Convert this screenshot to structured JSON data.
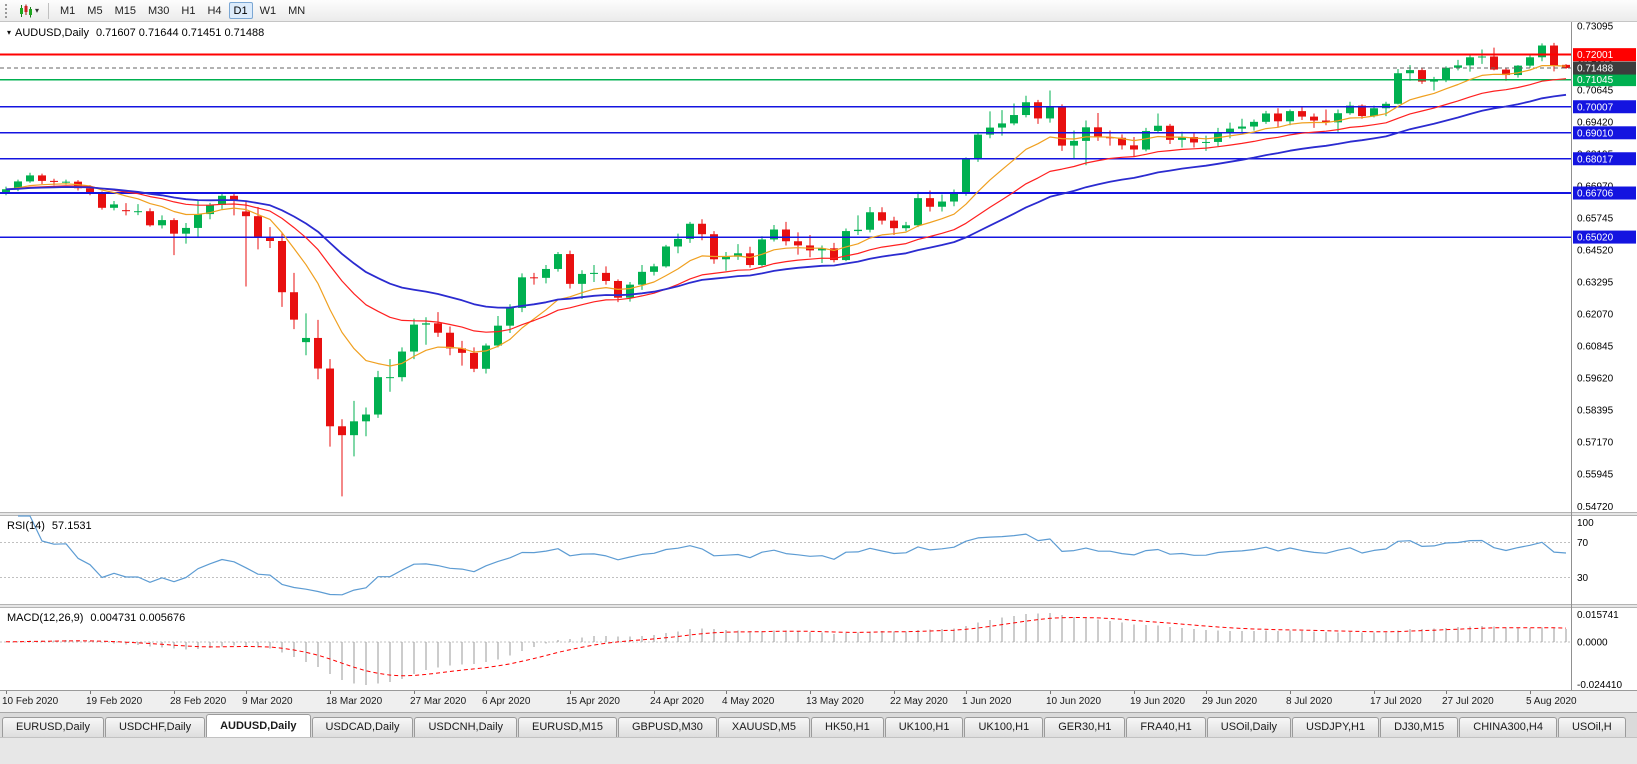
{
  "toolbar": {
    "timeframes": [
      "M1",
      "M5",
      "M15",
      "M30",
      "H1",
      "H4",
      "D1",
      "W1",
      "MN"
    ],
    "active_timeframe": "D1"
  },
  "main_chart": {
    "title": "AUDUSD,Daily",
    "ohlc": "0.71607 0.71644 0.71451 0.71488"
  },
  "rsi_panel": {
    "label": "RSI(14)",
    "value": "57.1531",
    "ticks": [
      "100",
      "70",
      "30"
    ]
  },
  "macd_panel": {
    "label": "MACD(12,26,9)",
    "values": "0.004731 0.005676",
    "ticks": [
      "0.015741",
      "0.0000",
      "-0.024410"
    ]
  },
  "chart_data": {
    "type": "candlestick",
    "symbol": "AUDUSD",
    "period": "Daily",
    "candle_up_color": "#00b050",
    "candle_down_color": "#e81010",
    "y_axis": {
      "min": 0.545,
      "max": 0.7325,
      "tick_values": [
        0.73095,
        0.7187,
        0.70645,
        0.6942,
        0.68195,
        0.6697,
        0.65745,
        0.6452,
        0.63295,
        0.6207,
        0.60845,
        0.5962,
        0.58395,
        0.5717,
        0.55945,
        0.5472
      ]
    },
    "x_labels": [
      {
        "t": "10 Feb 2020",
        "i": 0
      },
      {
        "t": "19 Feb 2020",
        "i": 7
      },
      {
        "t": "28 Feb 2020",
        "i": 14
      },
      {
        "t": "9 Mar 2020",
        "i": 20
      },
      {
        "t": "18 Mar 2020",
        "i": 27
      },
      {
        "t": "27 Mar 2020",
        "i": 34
      },
      {
        "t": "6 Apr 2020",
        "i": 40
      },
      {
        "t": "15 Apr 2020",
        "i": 47
      },
      {
        "t": "24 Apr 2020",
        "i": 54
      },
      {
        "t": "4 May 2020",
        "i": 60
      },
      {
        "t": "13 May 2020",
        "i": 67
      },
      {
        "t": "22 May 2020",
        "i": 74
      },
      {
        "t": "1 Jun 2020",
        "i": 80
      },
      {
        "t": "10 Jun 2020",
        "i": 87
      },
      {
        "t": "19 Jun 2020",
        "i": 94
      },
      {
        "t": "29 Jun 2020",
        "i": 100
      },
      {
        "t": "8 Jul 2020",
        "i": 107
      },
      {
        "t": "17 Jul 2020",
        "i": 114
      },
      {
        "t": "27 Jul 2020",
        "i": 120
      },
      {
        "t": "5 Aug 2020",
        "i": 127
      }
    ],
    "horizontal_lines": [
      {
        "value": 0.72001,
        "label": "0.72001",
        "color": "#ff0000",
        "width": 2
      },
      {
        "value": 0.71045,
        "label": "0.71045",
        "color": "#00b050",
        "width": 1.6
      },
      {
        "value": 0.70007,
        "label": "0.70007",
        "color": "#1414e0",
        "width": 1.6
      },
      {
        "value": 0.6901,
        "label": "0.69010",
        "color": "#1414e0",
        "width": 1.6
      },
      {
        "value": 0.68017,
        "label": "0.68017",
        "color": "#1414e0",
        "width": 1.6
      },
      {
        "value": 0.66706,
        "label": "0.66706",
        "color": "#1414e0",
        "width": 1.6
      },
      {
        "value": 0.6502,
        "label": "0.65020",
        "color": "#1414e0",
        "width": 1.6
      }
    ],
    "current_price": {
      "value": 0.71488,
      "label": "0.71488",
      "color": "#3d3d3d"
    },
    "moving_averages": [
      {
        "period": 10,
        "color": "#f0a020",
        "width": 1.2
      },
      {
        "period": 21,
        "color": "#ff2020",
        "width": 1.2
      },
      {
        "period": 34,
        "color": "#2b2bd0",
        "width": 1.8
      }
    ],
    "rsi": {
      "period": 14,
      "levels": [
        70,
        30
      ],
      "color": "#5d9cd3"
    },
    "macd": {
      "fast": 12,
      "slow": 26,
      "signal": 9,
      "histogram_color": "#9a9a9a",
      "signal_color": "#ff0000"
    },
    "candles": [
      [
        0.667,
        0.6695,
        0.6662,
        0.6685
      ],
      [
        0.6685,
        0.6722,
        0.6678,
        0.6715
      ],
      [
        0.6715,
        0.6748,
        0.671,
        0.6738
      ],
      [
        0.6738,
        0.6745,
        0.6705,
        0.6717
      ],
      [
        0.6717,
        0.6725,
        0.67,
        0.6713
      ],
      [
        0.6713,
        0.6722,
        0.6702,
        0.6714
      ],
      [
        0.6714,
        0.672,
        0.668,
        0.6689
      ],
      [
        0.6689,
        0.6701,
        0.6662,
        0.6672
      ],
      [
        0.6672,
        0.6677,
        0.6607,
        0.6614
      ],
      [
        0.6614,
        0.664,
        0.6604,
        0.6627
      ],
      [
        0.6605,
        0.6632,
        0.6585,
        0.6601
      ],
      [
        0.6601,
        0.6628,
        0.6586,
        0.6601
      ],
      [
        0.6601,
        0.6612,
        0.6542,
        0.6547
      ],
      [
        0.6547,
        0.6585,
        0.6535,
        0.6567
      ],
      [
        0.6567,
        0.6574,
        0.6433,
        0.6515
      ],
      [
        0.6515,
        0.6556,
        0.6477,
        0.6537
      ],
      [
        0.6537,
        0.6646,
        0.6504,
        0.659
      ],
      [
        0.659,
        0.6633,
        0.657,
        0.6625
      ],
      [
        0.6625,
        0.667,
        0.661,
        0.666
      ],
      [
        0.666,
        0.6668,
        0.6585,
        0.664
      ],
      [
        0.66,
        0.664,
        0.6313,
        0.6582
      ],
      [
        0.6582,
        0.6617,
        0.6455,
        0.65
      ],
      [
        0.65,
        0.654,
        0.646,
        0.6487
      ],
      [
        0.6487,
        0.652,
        0.6235,
        0.6291
      ],
      [
        0.6291,
        0.6365,
        0.615,
        0.6186
      ],
      [
        0.61,
        0.621,
        0.605,
        0.6116
      ],
      [
        0.6116,
        0.6185,
        0.5958,
        0.5999
      ],
      [
        0.5999,
        0.6035,
        0.57,
        0.5778
      ],
      [
        0.5778,
        0.5805,
        0.551,
        0.5744
      ],
      [
        0.5744,
        0.5875,
        0.5663,
        0.5797
      ],
      [
        0.5797,
        0.585,
        0.574,
        0.5823
      ],
      [
        0.5823,
        0.599,
        0.581,
        0.5966
      ],
      [
        0.5966,
        0.6035,
        0.591,
        0.5966
      ],
      [
        0.5966,
        0.608,
        0.595,
        0.6064
      ],
      [
        0.6064,
        0.619,
        0.6035,
        0.6167
      ],
      [
        0.6167,
        0.6195,
        0.609,
        0.6172
      ],
      [
        0.6172,
        0.6215,
        0.612,
        0.6136
      ],
      [
        0.6136,
        0.616,
        0.605,
        0.6076
      ],
      [
        0.6076,
        0.6105,
        0.601,
        0.6059
      ],
      [
        0.6059,
        0.608,
        0.5985,
        0.5998
      ],
      [
        0.5998,
        0.6095,
        0.598,
        0.6087
      ],
      [
        0.6087,
        0.62,
        0.608,
        0.6163
      ],
      [
        0.6163,
        0.6245,
        0.6135,
        0.6231
      ],
      [
        0.6231,
        0.6363,
        0.6215,
        0.6348
      ],
      [
        0.6348,
        0.6365,
        0.632,
        0.6346
      ],
      [
        0.6346,
        0.6395,
        0.6325,
        0.638
      ],
      [
        0.638,
        0.6445,
        0.637,
        0.6437
      ],
      [
        0.6437,
        0.645,
        0.6305,
        0.6323
      ],
      [
        0.6323,
        0.6375,
        0.6265,
        0.6361
      ],
      [
        0.6361,
        0.6395,
        0.633,
        0.6365
      ],
      [
        0.6365,
        0.639,
        0.632,
        0.6334
      ],
      [
        0.6334,
        0.634,
        0.6253,
        0.627
      ],
      [
        0.627,
        0.633,
        0.6255,
        0.632
      ],
      [
        0.632,
        0.6395,
        0.63,
        0.6369
      ],
      [
        0.6369,
        0.64,
        0.6355,
        0.639
      ],
      [
        0.639,
        0.6472,
        0.6385,
        0.6466
      ],
      [
        0.6466,
        0.6515,
        0.644,
        0.6495
      ],
      [
        0.6495,
        0.656,
        0.648,
        0.6553
      ],
      [
        0.6553,
        0.657,
        0.649,
        0.6513
      ],
      [
        0.6513,
        0.6525,
        0.64,
        0.6417
      ],
      [
        0.6417,
        0.6445,
        0.6373,
        0.6427
      ],
      [
        0.6427,
        0.6475,
        0.6415,
        0.644
      ],
      [
        0.644,
        0.6465,
        0.6385,
        0.6395
      ],
      [
        0.6395,
        0.6505,
        0.639,
        0.6493
      ],
      [
        0.6493,
        0.6548,
        0.6485,
        0.6531
      ],
      [
        0.6531,
        0.656,
        0.647,
        0.6486
      ],
      [
        0.6486,
        0.652,
        0.6435,
        0.647
      ],
      [
        0.647,
        0.651,
        0.6425,
        0.6451
      ],
      [
        0.6451,
        0.647,
        0.6403,
        0.6459
      ],
      [
        0.6459,
        0.648,
        0.6405,
        0.6414
      ],
      [
        0.6414,
        0.6535,
        0.641,
        0.6525
      ],
      [
        0.6525,
        0.6585,
        0.651,
        0.653
      ],
      [
        0.653,
        0.6617,
        0.652,
        0.6597
      ],
      [
        0.6597,
        0.6616,
        0.655,
        0.6565
      ],
      [
        0.6565,
        0.658,
        0.651,
        0.6536
      ],
      [
        0.6536,
        0.656,
        0.6525,
        0.6547
      ],
      [
        0.6547,
        0.6675,
        0.654,
        0.6651
      ],
      [
        0.6651,
        0.668,
        0.66,
        0.6618
      ],
      [
        0.6618,
        0.6665,
        0.66,
        0.6638
      ],
      [
        0.6638,
        0.6684,
        0.662,
        0.6667
      ],
      [
        0.6667,
        0.6807,
        0.666,
        0.6799
      ],
      [
        0.6799,
        0.69,
        0.679,
        0.6894
      ],
      [
        0.6894,
        0.6983,
        0.688,
        0.6921
      ],
      [
        0.6921,
        0.6988,
        0.689,
        0.6937
      ],
      [
        0.6937,
        0.7013,
        0.693,
        0.6969
      ],
      [
        0.6969,
        0.7043,
        0.696,
        0.7018
      ],
      [
        0.7018,
        0.7027,
        0.6935,
        0.6956
      ],
      [
        0.6956,
        0.7063,
        0.694,
        0.7
      ],
      [
        0.7,
        0.701,
        0.6832,
        0.6852
      ],
      [
        0.6852,
        0.691,
        0.68,
        0.687
      ],
      [
        0.687,
        0.6948,
        0.6777,
        0.6922
      ],
      [
        0.6922,
        0.6977,
        0.687,
        0.6884
      ],
      [
        0.6884,
        0.691,
        0.6852,
        0.6882
      ],
      [
        0.6882,
        0.6895,
        0.6837,
        0.6853
      ],
      [
        0.6853,
        0.6885,
        0.681,
        0.6837
      ],
      [
        0.6837,
        0.692,
        0.683,
        0.6908
      ],
      [
        0.6908,
        0.6975,
        0.69,
        0.6928
      ],
      [
        0.6928,
        0.6935,
        0.6858,
        0.6874
      ],
      [
        0.6874,
        0.6905,
        0.6845,
        0.6885
      ],
      [
        0.6885,
        0.69,
        0.6845,
        0.6864
      ],
      [
        0.6864,
        0.689,
        0.6832,
        0.6866
      ],
      [
        0.6866,
        0.692,
        0.685,
        0.6903
      ],
      [
        0.6903,
        0.694,
        0.688,
        0.6917
      ],
      [
        0.6917,
        0.6955,
        0.69,
        0.6925
      ],
      [
        0.6925,
        0.6952,
        0.691,
        0.6943
      ],
      [
        0.6943,
        0.6985,
        0.6935,
        0.6975
      ],
      [
        0.6975,
        0.6995,
        0.6922,
        0.6945
      ],
      [
        0.6945,
        0.699,
        0.693,
        0.6984
      ],
      [
        0.6984,
        0.7,
        0.695,
        0.6963
      ],
      [
        0.6963,
        0.6975,
        0.692,
        0.6948
      ],
      [
        0.6948,
        0.699,
        0.693,
        0.6941
      ],
      [
        0.6941,
        0.699,
        0.6905,
        0.6976
      ],
      [
        0.6976,
        0.702,
        0.697,
        0.7005
      ],
      [
        0.7005,
        0.701,
        0.6955,
        0.6965
      ],
      [
        0.6965,
        0.7005,
        0.696,
        0.6995
      ],
      [
        0.6995,
        0.702,
        0.6965,
        0.7012
      ],
      [
        0.7012,
        0.7145,
        0.701,
        0.7129
      ],
      [
        0.7129,
        0.716,
        0.71,
        0.7141
      ],
      [
        0.7141,
        0.715,
        0.7088,
        0.7097
      ],
      [
        0.7097,
        0.7115,
        0.7063,
        0.7104
      ],
      [
        0.7104,
        0.7155,
        0.7095,
        0.715
      ],
      [
        0.715,
        0.718,
        0.714,
        0.7159
      ],
      [
        0.7159,
        0.7198,
        0.7135,
        0.719
      ],
      [
        0.719,
        0.722,
        0.7165,
        0.7193
      ],
      [
        0.7193,
        0.7227,
        0.714,
        0.7143
      ],
      [
        0.7143,
        0.715,
        0.71,
        0.7122
      ],
      [
        0.7122,
        0.716,
        0.7112,
        0.7158
      ],
      [
        0.7158,
        0.72,
        0.715,
        0.719
      ],
      [
        0.719,
        0.7243,
        0.7175,
        0.7235
      ],
      [
        0.7235,
        0.7245,
        0.7136,
        0.7157
      ],
      [
        0.7161,
        0.7164,
        0.7145,
        0.7149
      ]
    ]
  },
  "tabs": {
    "items": [
      {
        "label": "EURUSD,Daily",
        "active": false
      },
      {
        "label": "USDCHF,Daily",
        "active": false
      },
      {
        "label": "AUDUSD,Daily",
        "active": true
      },
      {
        "label": "USDCAD,Daily",
        "active": false
      },
      {
        "label": "USDCNH,Daily",
        "active": false
      },
      {
        "label": "EURUSD,M15",
        "active": false
      },
      {
        "label": "GBPUSD,M30",
        "active": false
      },
      {
        "label": "XAUUSD,M5",
        "active": false
      },
      {
        "label": "HK50,H1",
        "active": false
      },
      {
        "label": "UK100,H1",
        "active": false
      },
      {
        "label": "UK100,H1",
        "active": false
      },
      {
        "label": "GER30,H1",
        "active": false
      },
      {
        "label": "FRA40,H1",
        "active": false
      },
      {
        "label": "USOil,Daily",
        "active": false
      },
      {
        "label": "USDJPY,H1",
        "active": false
      },
      {
        "label": "DJ30,M15",
        "active": false
      },
      {
        "label": "CHINA300,H4",
        "active": false
      },
      {
        "label": "USOil,H",
        "active": false
      }
    ]
  }
}
